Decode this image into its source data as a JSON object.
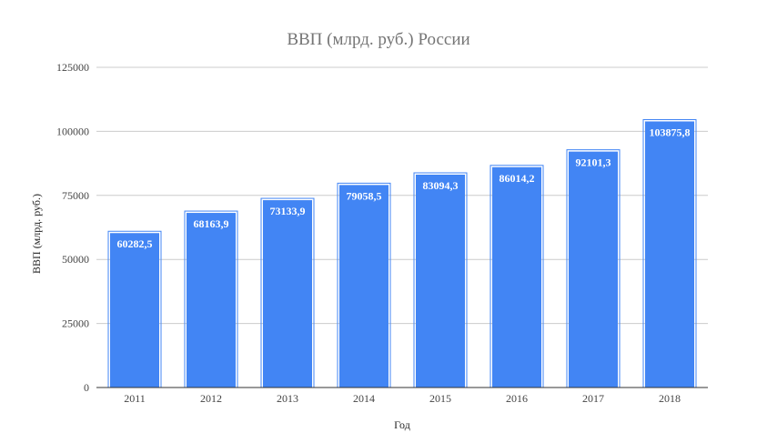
{
  "chart_data": {
    "type": "bar",
    "title": "ВВП (млрд. руб.) России",
    "xlabel": "Год",
    "ylabel": "ВВП (млрд. руб.)",
    "categories": [
      "2011",
      "2012",
      "2013",
      "2014",
      "2015",
      "2016",
      "2017",
      "2018"
    ],
    "values": [
      60282.5,
      68163.9,
      73133.9,
      79058.5,
      83094.3,
      86014.2,
      92101.3,
      103875.8
    ],
    "value_labels": [
      "60282,5",
      "68163,9",
      "73133,9",
      "79058,5",
      "83094,3",
      "86014,2",
      "92101,3",
      "103875,8"
    ],
    "ylim": [
      0,
      125000
    ],
    "yticks": [
      0,
      25000,
      50000,
      75000,
      100000,
      125000
    ],
    "ytick_labels": [
      "0",
      "25000",
      "50000",
      "75000",
      "100000",
      "125000"
    ],
    "grid": true,
    "legend": "none",
    "bar_color": "#4285f4"
  }
}
